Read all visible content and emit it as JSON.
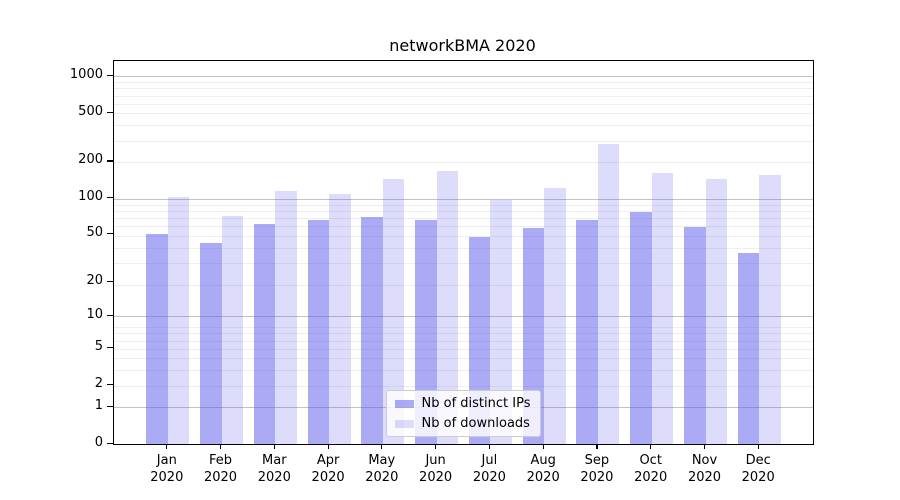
{
  "chart_data": {
    "type": "bar",
    "title": "networkBMA 2020",
    "categories": [
      "Jan",
      "Feb",
      "Mar",
      "Apr",
      "May",
      "Jun",
      "Jul",
      "Aug",
      "Sep",
      "Oct",
      "Nov",
      "Dec"
    ],
    "category_year": "2020",
    "series": [
      {
        "name": "Nb of distinct IPs",
        "color": "rgba(85,85,235,0.5)",
        "values": [
          51,
          43,
          61,
          66,
          70,
          66,
          48,
          57,
          67,
          77,
          58,
          35
        ]
      },
      {
        "name": "Nb of downloads",
        "color": "rgba(85,85,235,0.2)",
        "values": [
          102,
          72,
          115,
          108,
          145,
          168,
          97,
          121,
          280,
          162,
          145,
          156
        ]
      }
    ],
    "yscale": "log1p",
    "yticks": [
      0,
      1,
      2,
      5,
      10,
      20,
      50,
      100,
      200,
      500,
      1000
    ],
    "ylim": [
      0,
      1337
    ],
    "xlabel": "",
    "ylabel": "",
    "grid": true,
    "legend_position": "lower center"
  },
  "colors": {
    "bar_distinct_ips": "rgba(85,85,235,0.5)",
    "bar_downloads": "rgba(85,85,235,0.2)",
    "grid_major": "#c3c3c3",
    "grid_minor": "#ededf2",
    "axis": "#000000"
  }
}
